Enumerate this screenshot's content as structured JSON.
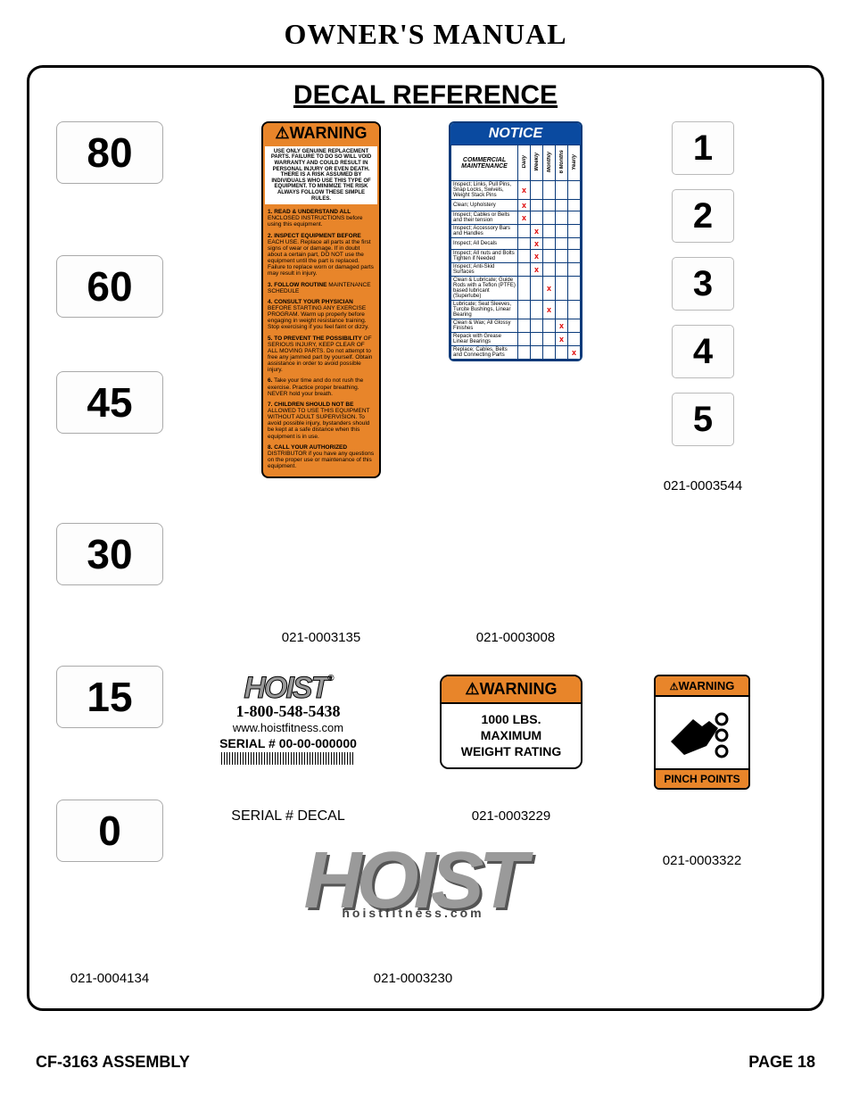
{
  "page_title": "OWNER'S MANUAL",
  "section_title": "DECAL REFERENCE",
  "footer_left": "CF-3163 ASSEMBLY",
  "footer_right": "PAGE 18",
  "colors": {
    "warning_orange": "#e8852a",
    "notice_blue": "#0a4aa0",
    "border_blue": "#0a3a7a",
    "logo_gray": "#9a9a9a",
    "red_x": "#d00000",
    "black": "#000000",
    "white": "#ffffff"
  },
  "weight_stack": {
    "values": [
      "80",
      "60",
      "45",
      "30",
      "15",
      "0"
    ],
    "part_number": "021-0004134"
  },
  "number_stack": {
    "values": [
      "1",
      "2",
      "3",
      "4",
      "5"
    ],
    "part_number": "021-0003544"
  },
  "warning_decal": {
    "header": "WARNING",
    "intro": "USE ONLY GENUINE REPLACEMENT PARTS. FAILURE TO DO SO WILL VOID WARRANTY AND COULD RESULT IN PERSONAL INJURY OR EVEN DEATH. THERE IS A RISK ASSUMED BY INDIVIDUALS WHO USE THIS TYPE OF EQUIPMENT. TO MINIMIZE THE RISK ALWAYS FOLLOW THESE SIMPLE RULES.",
    "items": [
      {
        "h": "1. READ & UNDERSTAND ALL",
        "b": "ENCLOSED INSTRUCTIONS before using this equipment."
      },
      {
        "h": "2. INSPECT EQUIPMENT BEFORE",
        "b": "EACH USE. Replace all parts at the first signs of wear or damage. If in doubt about a certain part, DO NOT use the equipment until the part is replaced. Failure to replace worn or damaged parts may result in injury."
      },
      {
        "h": "3. FOLLOW ROUTINE",
        "b": "MAINTENANCE SCHEDULE"
      },
      {
        "h": "4. CONSULT YOUR PHYSICIAN",
        "b": "BEFORE STARTING ANY EXERCISE PROGRAM. Warm up properly before engaging in weight resistance training. Stop exercising if you feel faint or dizzy."
      },
      {
        "h": "5. TO PREVENT THE POSSIBILITY",
        "b": "OF SERIOUS INJURY, KEEP CLEAR OF ALL MOVING PARTS. Do not attempt to free any jammed part by yourself. Obtain assistance in order to avoid possible injury."
      },
      {
        "h": "6.",
        "b": "Take your time and do not rush the exercise. Practice proper breathing. NEVER hold your breath."
      },
      {
        "h": "7. CHILDREN SHOULD NOT BE",
        "b": "ALLOWED TO USE THIS EQUIPMENT WITHOUT ADULT SUPERVISION. To avoid possible injury, bystanders should be kept at a safe distance when this equipment is in use."
      },
      {
        "h": "8. CALL YOUR AUTHORIZED",
        "b": "DISTRIBUTOR if you have any questions on the proper use or maintenance of this equipment."
      }
    ],
    "part_number": "021-0003135"
  },
  "notice_decal": {
    "header": "NOTICE",
    "subheader": "COMMERCIAL MAINTENANCE",
    "columns": [
      "Daily",
      "Weekly",
      "Monthly",
      "6 Months",
      "Yearly"
    ],
    "rows": [
      {
        "t": "Inspect; Links, Pull Pins, Snap Locks, Swivels, Weight Stack Pins",
        "x": 0
      },
      {
        "t": "Clean; Upholstery",
        "x": 0
      },
      {
        "t": "Inspect; Cables or Belts and their tension",
        "x": 0
      },
      {
        "t": "Inspect; Accessory Bars and Handles",
        "x": 1
      },
      {
        "t": "Inspect; All Decals",
        "x": 1
      },
      {
        "t": "Inspect; All nuts and Bolts Tighten if Needed",
        "x": 1
      },
      {
        "t": "Inspect; Anti-Skid Surfaces",
        "x": 1
      },
      {
        "t": "Clean & Lubricate; Guide Rods with a Teflon (PTFE) based lubricant (Superlube)",
        "x": 2
      },
      {
        "t": "Lubricate; Seat Sleeves, Turcite Bushings, Linear Bearing",
        "x": 2
      },
      {
        "t": "Clean & Wax; All Glossy Finishes",
        "x": 3
      },
      {
        "t": "Repack with Grease Linear Bearings",
        "x": 3
      },
      {
        "t": "Replace; Cables, Belts and Connecting Parts",
        "x": 4
      }
    ],
    "part_number": "021-0003008"
  },
  "serial_decal": {
    "logo": "HOIST",
    "phone": "1-800-548-5438",
    "url": "www.hoistfitness.com",
    "serial": "SERIAL # 00-00-000000",
    "label": "SERIAL # DECAL"
  },
  "weight_rating": {
    "header": "WARNING",
    "line1": "1000 LBS.",
    "line2": "MAXIMUM",
    "line3": "WEIGHT RATING",
    "part_number": "021-0003229"
  },
  "pinch": {
    "header": "WARNING",
    "footer": "PINCH POINTS",
    "part_number": "021-0003322"
  },
  "big_logo": {
    "text": "HOIST",
    "sub": "hoistfitness.com",
    "part_number": "021-0003230"
  }
}
